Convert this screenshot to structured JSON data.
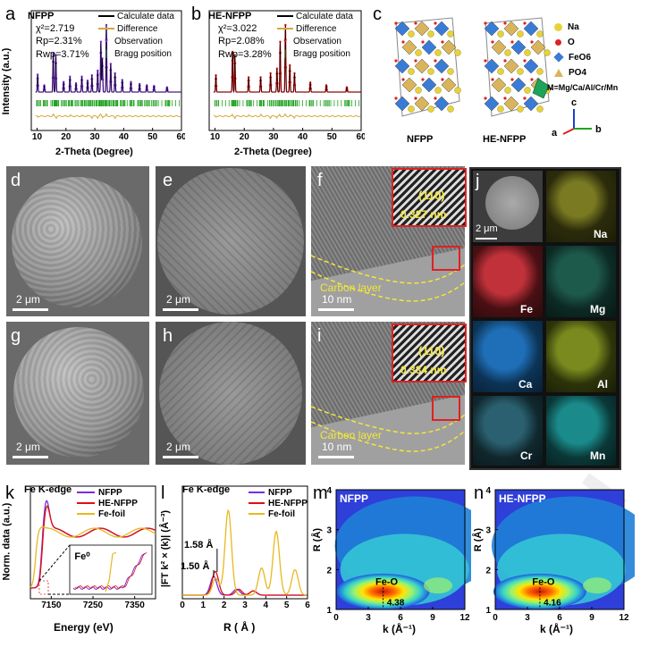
{
  "panels": {
    "a": {
      "letter": "a",
      "sample": "NFPP",
      "chi2": "χ²=2.719",
      "rp": "Rp=2.31%",
      "rwp": "Rwp=3.71%",
      "chi2_value": 2.719,
      "rp_value": 2.31,
      "rwp_value": 3.71
    },
    "b": {
      "letter": "b",
      "sample": "HE-NFPP",
      "chi2": "χ²=3.022",
      "rp": "Rp=2.08%",
      "rwp": "Rwp=3.28%",
      "chi2_value": 3.022,
      "rp_value": 2.08,
      "rwp_value": 3.28
    },
    "c": {
      "letter": "c",
      "labels": [
        "NFPP",
        "HE-NFPP"
      ],
      "legend": [
        "Na",
        "O",
        "FeO6",
        "PO4"
      ],
      "substitution": "M=Mg/Ca/Al/Cr/Mn",
      "axes": [
        "a",
        "b",
        "c"
      ]
    },
    "d": {
      "letter": "d",
      "scale": "2 μm"
    },
    "e": {
      "letter": "e",
      "scale": "2 μm"
    },
    "f": {
      "letter": "f",
      "scale": "10 nm",
      "plane": "(110)",
      "spacing": "0.327 nm",
      "layer": "Carbon layer"
    },
    "g": {
      "letter": "g",
      "scale": "2 μm"
    },
    "h": {
      "letter": "h",
      "scale": "2 μm"
    },
    "i": {
      "letter": "i",
      "scale": "10 nm",
      "plane": "(110)",
      "spacing": "0.334 nm",
      "layer": "Carbon layer"
    },
    "j": {
      "letter": "j",
      "scale": "2 μm",
      "elements": [
        "Na",
        "Fe",
        "Mg",
        "Ca",
        "Al",
        "Cr",
        "Mn"
      ]
    },
    "k": {
      "letter": "k",
      "title": "Fe K-edge",
      "inset": "Fe⁰"
    },
    "l": {
      "letter": "l",
      "title": "Fe K-edge",
      "peak1": "1.50 Å",
      "peak2": "1.58 Å"
    },
    "m": {
      "letter": "m",
      "sample": "NFPP",
      "bond": "Fe-O",
      "kpos": "4.38",
      "kpos_value": 4.38
    },
    "n": {
      "letter": "n",
      "sample": "HE-NFPP",
      "bond": "Fe-O",
      "kpos": "4.16",
      "kpos_value": 4.16
    }
  },
  "colors": {
    "nfpp": "#7a2be0",
    "henfpp": "#e01010",
    "fefoil": "#e8b820",
    "calc": "#000000",
    "diff": "#d6a93a",
    "bragg": "#22a322"
  },
  "chart_data": [
    {
      "id": "a",
      "type": "line",
      "xlabel": "2-Theta (Degree)",
      "ylabel": "Intensity (a.u.)",
      "xlim": [
        8,
        60
      ],
      "xticks": [
        10,
        20,
        30,
        40,
        50,
        60
      ],
      "legend": [
        "Calculate data",
        "Difference",
        "Observation",
        "Bragg position"
      ],
      "peaks": [
        {
          "x": 10.2,
          "h": 0.26
        },
        {
          "x": 12.5,
          "h": 0.1
        },
        {
          "x": 15.6,
          "h": 0.58
        },
        {
          "x": 16.5,
          "h": 0.55
        },
        {
          "x": 19.2,
          "h": 0.15
        },
        {
          "x": 21.4,
          "h": 0.23
        },
        {
          "x": 23.5,
          "h": 0.13
        },
        {
          "x": 25.5,
          "h": 0.23
        },
        {
          "x": 27.5,
          "h": 0.17
        },
        {
          "x": 29.0,
          "h": 0.25
        },
        {
          "x": 31.0,
          "h": 0.32
        },
        {
          "x": 32.1,
          "h": 0.75
        },
        {
          "x": 32.6,
          "h": 0.5
        },
        {
          "x": 34.0,
          "h": 1.0
        },
        {
          "x": 35.5,
          "h": 0.42
        },
        {
          "x": 37.0,
          "h": 0.28
        },
        {
          "x": 39.5,
          "h": 0.18
        },
        {
          "x": 42.5,
          "h": 0.15
        },
        {
          "x": 45.5,
          "h": 0.12
        },
        {
          "x": 48.0,
          "h": 0.1
        },
        {
          "x": 50.5,
          "h": 0.09
        },
        {
          "x": 55.0,
          "h": 0.07
        }
      ]
    },
    {
      "id": "b",
      "type": "line",
      "xlabel": "2-Theta (Degree)",
      "ylabel": "",
      "xlim": [
        8,
        60
      ],
      "xticks": [
        10,
        20,
        30,
        40,
        50,
        60
      ],
      "legend": [
        "Calculate data",
        "Difference",
        "Observation",
        "Bragg position"
      ],
      "peaks": [
        {
          "x": 10.3,
          "h": 0.25
        },
        {
          "x": 16.0,
          "h": 0.6
        },
        {
          "x": 16.8,
          "h": 0.55
        },
        {
          "x": 21.5,
          "h": 0.22
        },
        {
          "x": 25.6,
          "h": 0.22
        },
        {
          "x": 29.0,
          "h": 0.28
        },
        {
          "x": 31.2,
          "h": 0.35
        },
        {
          "x": 32.3,
          "h": 0.75
        },
        {
          "x": 34.1,
          "h": 1.0
        },
        {
          "x": 35.6,
          "h": 0.4
        },
        {
          "x": 37.2,
          "h": 0.28
        },
        {
          "x": 42.6,
          "h": 0.14
        },
        {
          "x": 48.1,
          "h": 0.1
        },
        {
          "x": 55.1,
          "h": 0.07
        }
      ]
    },
    {
      "id": "k",
      "type": "line",
      "title": "Fe K-edge",
      "xlabel": "Energy (eV)",
      "ylabel": "Norm. data (a.u.)",
      "xlim": [
        7100,
        7400
      ],
      "xticks": [
        7150,
        7250,
        7350
      ],
      "series": [
        {
          "name": "NFPP"
        },
        {
          "name": "HE-NFPP"
        },
        {
          "name": "Fe-foil"
        }
      ]
    },
    {
      "id": "l",
      "type": "line",
      "title": "Fe K-edge",
      "xlabel": "R ( Å )",
      "ylabel": "|FT k² × (k)| (Å⁻³)",
      "xlim": [
        0,
        6
      ],
      "xticks": [
        0,
        1,
        2,
        3,
        4,
        5,
        6
      ],
      "series": [
        {
          "name": "NFPP",
          "peaks": [
            {
              "r": 1.5,
              "h": 0.22
            },
            {
              "r": 2.6,
              "h": 0.07
            },
            {
              "r": 3.4,
              "h": 0.05
            }
          ]
        },
        {
          "name": "HE-NFPP",
          "peaks": [
            {
              "r": 1.58,
              "h": 0.28
            },
            {
              "r": 2.7,
              "h": 0.07
            },
            {
              "r": 3.4,
              "h": 0.05
            }
          ]
        },
        {
          "name": "Fe-foil",
          "peaks": [
            {
              "r": 2.2,
              "h": 1.0
            },
            {
              "r": 1.6,
              "h": 0.2
            },
            {
              "r": 3.8,
              "h": 0.32
            },
            {
              "r": 4.5,
              "h": 0.75
            },
            {
              "r": 5.4,
              "h": 0.3
            }
          ]
        }
      ]
    },
    {
      "id": "m",
      "type": "heatmap",
      "title": "NFPP",
      "xlabel": "k (Å⁻¹)",
      "ylabel": "R (Å)",
      "xlim": [
        0,
        12
      ],
      "ylim": [
        1,
        4
      ],
      "xticks": [
        0,
        3,
        6,
        9,
        12
      ],
      "yticks": [
        1,
        2,
        3,
        4
      ],
      "max": {
        "k": 4.38,
        "r": 1.45
      }
    },
    {
      "id": "n",
      "type": "heatmap",
      "title": "HE-NFPP",
      "xlabel": "k (Å⁻¹)",
      "ylabel": "R (Å)",
      "xlim": [
        0,
        12
      ],
      "ylim": [
        1,
        4
      ],
      "xticks": [
        0,
        3,
        6,
        9,
        12
      ],
      "yticks": [
        1,
        2,
        3,
        4
      ],
      "max": {
        "k": 4.16,
        "r": 1.45
      }
    }
  ]
}
